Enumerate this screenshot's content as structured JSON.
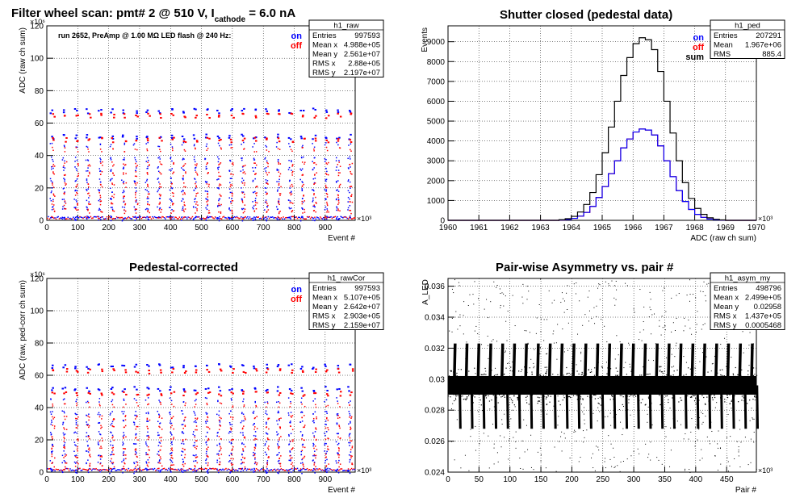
{
  "chart_data": [
    {
      "type": "scatter",
      "title": {
        "pre": "Filter wheel scan: pmt#   2 @   510 V, I",
        "sub": "cathode",
        "post": "= 6.0 nA"
      },
      "xlabel": "Event #",
      "ylabel": "ADC (raw ch sum)",
      "x_multiplier": "×10³",
      "y_multiplier": "×10⁶",
      "xlim": [
        0,
        997
      ],
      "ylim": [
        0,
        120
      ],
      "x_ticks": [
        0,
        100,
        200,
        300,
        400,
        500,
        600,
        700,
        800,
        900
      ],
      "y_ticks": [
        0,
        20,
        40,
        60,
        80,
        100,
        120
      ],
      "annotation": "run 2652, PreAmp @ 1.00 MΩ   LED flash @  240 Hz:",
      "legend": [
        {
          "label": "on",
          "color": "#0000ff"
        },
        {
          "label": "off",
          "color": "#ff0000"
        }
      ],
      "stats": {
        "title": "h1_raw",
        "rows": [
          [
            "Entries",
            "997593"
          ],
          [
            "Mean x",
            "4.988e+05"
          ],
          [
            "Mean y",
            "2.561e+07"
          ],
          [
            "RMS x",
            "2.88e+05"
          ],
          [
            "RMS y",
            "2.197e+07"
          ]
        ]
      },
      "series": [
        {
          "name": "on",
          "color": "#0000ff",
          "levels": [
            68,
            52,
            47,
            38,
            32,
            25,
            19,
            13,
            8,
            1.5
          ],
          "period": 38.5
        },
        {
          "name": "off",
          "color": "#ff0000",
          "levels": [
            65,
            50,
            44,
            35,
            29,
            22,
            16,
            11,
            6
          ],
          "period": 38.5
        }
      ]
    },
    {
      "type": "histogram",
      "title": "Shutter closed (pedestal data)",
      "xlabel": "ADC (raw ch sum)",
      "ylabel": "Events",
      "x_multiplier": "×10³",
      "xlim": [
        1960,
        1970
      ],
      "ylim": [
        0,
        9800
      ],
      "x_ticks": [
        1960,
        1961,
        1962,
        1963,
        1964,
        1965,
        1966,
        1967,
        1968,
        1969,
        1970
      ],
      "y_ticks": [
        0,
        1000,
        2000,
        3000,
        4000,
        5000,
        6000,
        7000,
        8000,
        9000
      ],
      "legend": [
        {
          "label": "on",
          "color": "#0000ff"
        },
        {
          "label": "off",
          "color": "#ff0000"
        },
        {
          "label": "sum",
          "color": "#000000"
        }
      ],
      "stats": {
        "title": "h1_ped",
        "rows": [
          [
            "Entries",
            "207291"
          ],
          [
            "Mean",
            "1.967e+06"
          ],
          [
            "RMS",
            "885.4"
          ]
        ]
      },
      "bin_width": 0.2,
      "bin_start": 1963.6,
      "sum_values": [
        30,
        80,
        200,
        420,
        800,
        1400,
        2300,
        3400,
        4700,
        6000,
        7300,
        8200,
        8900,
        9200,
        9100,
        8600,
        7500,
        6000,
        4400,
        3000,
        1900,
        1100,
        600,
        300,
        130,
        50,
        20
      ],
      "on_values": [
        15,
        40,
        100,
        210,
        400,
        700,
        1150,
        1700,
        2350,
        3000,
        3650,
        4100,
        4450,
        4600,
        4550,
        4300,
        3750,
        3000,
        2200,
        1500,
        950,
        550,
        300,
        150,
        65,
        25,
        10
      ],
      "off_values": [
        15,
        40,
        100,
        210,
        400,
        700,
        1150,
        1700,
        2350,
        3000,
        3650,
        4100,
        4450,
        4600,
        4550,
        4300,
        3750,
        3000,
        2200,
        1500,
        950,
        550,
        300,
        150,
        65,
        25,
        10
      ]
    },
    {
      "type": "scatter",
      "title": "Pedestal-corrected",
      "xlabel": "Event #",
      "ylabel": "ADC (raw, ped-corr ch sum)",
      "x_multiplier": "×10³",
      "y_multiplier": "×10⁶",
      "xlim": [
        0,
        997
      ],
      "ylim": [
        0,
        120
      ],
      "x_ticks": [
        0,
        100,
        200,
        300,
        400,
        500,
        600,
        700,
        800,
        900
      ],
      "y_ticks": [
        0,
        20,
        40,
        60,
        80,
        100,
        120
      ],
      "legend": [
        {
          "label": "on",
          "color": "#0000ff"
        },
        {
          "label": "off",
          "color": "#ff0000"
        }
      ],
      "stats": {
        "title": "h1_rawCor",
        "rows": [
          [
            "Entries",
            "997593"
          ],
          [
            "Mean x",
            "5.107e+05"
          ],
          [
            "Mean y",
            "2.642e+07"
          ],
          [
            "RMS x",
            "2.903e+05"
          ],
          [
            "RMS y",
            "2.159e+07"
          ]
        ]
      },
      "series": [
        {
          "name": "on",
          "color": "#0000ff",
          "levels": [
            66,
            52,
            45,
            37,
            31,
            24,
            18,
            12,
            7,
            1
          ],
          "period": 38.5
        },
        {
          "name": "off",
          "color": "#ff0000",
          "levels": [
            63,
            49,
            42,
            34,
            28,
            21,
            15,
            10,
            5
          ],
          "period": 38.5
        }
      ]
    },
    {
      "type": "scatter",
      "title": "Pair-wise Asymmetry vs. pair #",
      "xlabel": "Pair #",
      "ylabel": "A_LED",
      "x_multiplier": "×10³",
      "xlim": [
        0,
        498
      ],
      "ylim": [
        0.024,
        0.0365
      ],
      "x_ticks": [
        0,
        50,
        100,
        150,
        200,
        250,
        300,
        350,
        400,
        450
      ],
      "y_ticks": [
        0.024,
        0.026,
        0.028,
        0.03,
        0.032,
        0.034,
        0.036
      ],
      "stats": {
        "title": "h1_asym_my",
        "rows": [
          [
            "Entries",
            "498796"
          ],
          [
            "Mean x",
            "2.499e+05"
          ],
          [
            "Mean y",
            "0.02958"
          ],
          [
            "RMS x",
            "1.437e+05"
          ],
          [
            "RMS y",
            "0.0005468"
          ]
        ]
      },
      "band_center": 0.0296,
      "band_halfwidth": 0.0006,
      "spike_period": 19.2,
      "spike_up": 0.0323,
      "spike_down": 0.0268
    }
  ]
}
